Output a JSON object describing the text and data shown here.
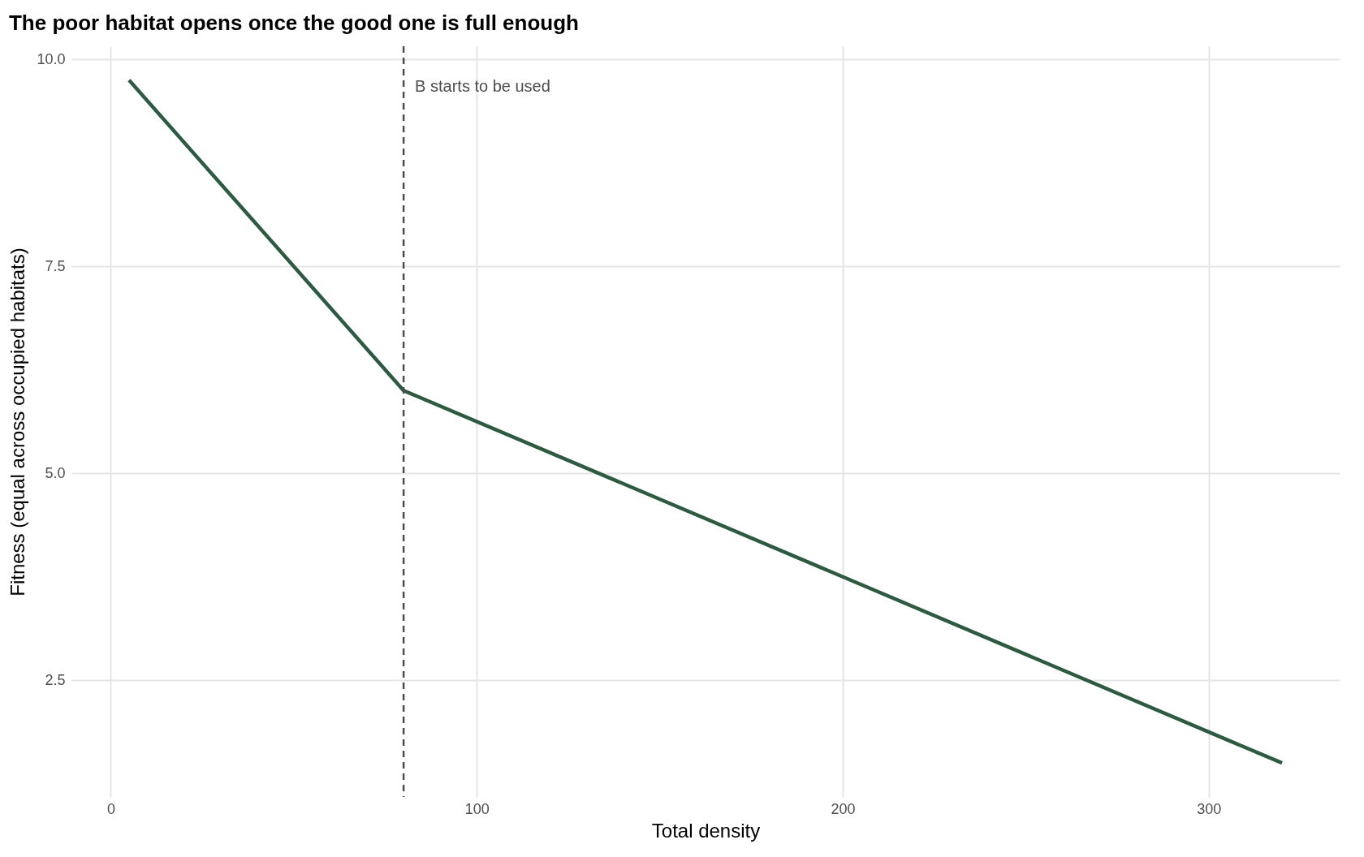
{
  "chart_data": {
    "type": "line",
    "title": "The poor habitat opens once the good one is full enough",
    "xlabel": "Total density",
    "ylabel": "Fitness (equal across occupied habitats)",
    "x": [
      5,
      80,
      320
    ],
    "series": [
      {
        "color": "#2e5a41",
        "values": [
          9.75,
          6.0,
          1.5
        ]
      }
    ],
    "xlim": [
      -10.75,
      335.75
    ],
    "xticks": [
      0,
      100,
      200,
      300
    ],
    "ylim": [
      1.09,
      10.16
    ],
    "yticks": [
      {
        "value": 2.5,
        "label": "2.5"
      },
      {
        "value": 5,
        "label": "5.0"
      },
      {
        "value": 7.5,
        "label": "7.5"
      },
      {
        "value": 10,
        "label": "10.0"
      }
    ],
    "ref_lines": [
      {
        "axis": "x",
        "value": 80,
        "color": "#4d4d4d",
        "line_style": "dashed",
        "label": "B starts to be used"
      }
    ],
    "grid": true,
    "marker": "none",
    "line_style": "solid"
  }
}
